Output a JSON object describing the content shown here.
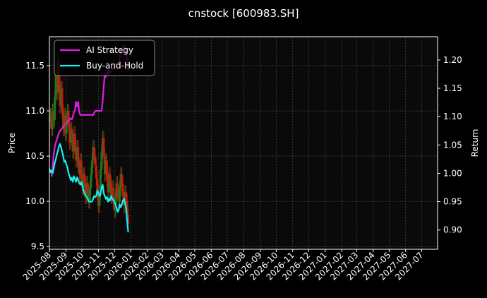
{
  "chart_data": {
    "type": "line",
    "title": "cnstock [600983.SH]",
    "ylabel_left": "Price",
    "ylabel_right": "Return",
    "xlabel": "",
    "grid": true,
    "legend_position": "top-left",
    "x_start": "2025-08-01",
    "x_end": "2027-07-31",
    "ylim_left": [
      9.47,
      11.82
    ],
    "ylim_right": [
      0.866,
      1.241
    ],
    "x_ticks": [
      "2025-08",
      "2025-09",
      "2025-10",
      "2025-11",
      "2025-12",
      "2026-01",
      "2026-02",
      "2026-03",
      "2026-04",
      "2026-05",
      "2026-06",
      "2026-07",
      "2026-08",
      "2026-09",
      "2026-10",
      "2026-11",
      "2026-12",
      "2027-01",
      "2027-02",
      "2027-03",
      "2027-04",
      "2027-05",
      "2027-06",
      "2027-07"
    ],
    "y_ticks_left": [
      9.5,
      10.0,
      10.5,
      11.0,
      11.5
    ],
    "y_ticks_right": [
      0.9,
      0.95,
      1.0,
      1.05,
      1.1,
      1.15,
      1.2
    ],
    "y_tick_labels_left": [
      "9.5",
      "10.0",
      "10.5",
      "11.0",
      "11.5"
    ],
    "y_tick_labels_right": [
      "0.90",
      "0.95",
      "1.00",
      "1.05",
      "1.10",
      "1.15",
      "1.20"
    ],
    "colors": {
      "background": "#000000",
      "axes_face": "#0a0a0a",
      "text": "#ffffff",
      "grid": "#555555",
      "up_candle": "#1a7a1a",
      "down_candle": "#c41a10"
    },
    "price_series": {
      "name": "600983.SH",
      "type": "candlestick",
      "points": [
        [
          "2025-08-01",
          10.88
        ],
        [
          "2025-08-03",
          10.95
        ],
        [
          "2025-08-05",
          10.8
        ],
        [
          "2025-08-07",
          11.0
        ],
        [
          "2025-08-09",
          10.9
        ],
        [
          "2025-08-11",
          11.15
        ],
        [
          "2025-08-13",
          11.4
        ],
        [
          "2025-08-15",
          11.2
        ],
        [
          "2025-08-17",
          11.55
        ],
        [
          "2025-08-19",
          11.3
        ],
        [
          "2025-08-21",
          11.05
        ],
        [
          "2025-08-23",
          11.25
        ],
        [
          "2025-08-25",
          11.0
        ],
        [
          "2025-08-27",
          10.8
        ],
        [
          "2025-08-29",
          10.95
        ],
        [
          "2025-08-31",
          10.75
        ],
        [
          "2025-09-02",
          10.9
        ],
        [
          "2025-09-04",
          11.0
        ],
        [
          "2025-09-06",
          10.85
        ],
        [
          "2025-09-08",
          10.65
        ],
        [
          "2025-09-10",
          10.8
        ],
        [
          "2025-09-12",
          10.7
        ],
        [
          "2025-09-14",
          10.55
        ],
        [
          "2025-09-16",
          10.75
        ],
        [
          "2025-09-18",
          10.6
        ],
        [
          "2025-09-20",
          10.45
        ],
        [
          "2025-09-22",
          10.6
        ],
        [
          "2025-09-24",
          10.4
        ],
        [
          "2025-09-26",
          10.3
        ],
        [
          "2025-09-28",
          10.45
        ],
        [
          "2025-09-30",
          10.25
        ],
        [
          "2025-10-02",
          10.15
        ],
        [
          "2025-10-04",
          10.3
        ],
        [
          "2025-10-06",
          10.2
        ],
        [
          "2025-10-08",
          10.05
        ],
        [
          "2025-10-10",
          10.2
        ],
        [
          "2025-10-12",
          10.1
        ],
        [
          "2025-10-14",
          10.0
        ],
        [
          "2025-10-16",
          10.15
        ],
        [
          "2025-10-18",
          10.3
        ],
        [
          "2025-10-20",
          10.45
        ],
        [
          "2025-10-22",
          10.6
        ],
        [
          "2025-10-24",
          10.5
        ],
        [
          "2025-10-26",
          10.4
        ],
        [
          "2025-10-28",
          10.25
        ],
        [
          "2025-10-30",
          10.1
        ],
        [
          "2025-11-01",
          9.95
        ],
        [
          "2025-11-03",
          10.1
        ],
        [
          "2025-11-05",
          10.35
        ],
        [
          "2025-11-07",
          10.55
        ],
        [
          "2025-11-09",
          10.7
        ],
        [
          "2025-11-11",
          10.5
        ],
        [
          "2025-11-13",
          10.3
        ],
        [
          "2025-11-15",
          10.45
        ],
        [
          "2025-11-17",
          10.25
        ],
        [
          "2025-11-19",
          10.1
        ],
        [
          "2025-11-21",
          10.3
        ],
        [
          "2025-11-23",
          10.2
        ],
        [
          "2025-11-25",
          10.05
        ],
        [
          "2025-11-27",
          10.15
        ],
        [
          "2025-11-29",
          10.0
        ],
        [
          "2025-12-01",
          9.9
        ],
        [
          "2025-12-03",
          10.05
        ],
        [
          "2025-12-05",
          10.2
        ],
        [
          "2025-12-07",
          10.1
        ],
        [
          "2025-12-09",
          10.0
        ],
        [
          "2025-12-11",
          10.15
        ],
        [
          "2025-12-13",
          10.3
        ],
        [
          "2025-12-15",
          10.2
        ],
        [
          "2025-12-17",
          10.05
        ],
        [
          "2025-12-19",
          9.95
        ],
        [
          "2025-12-21",
          10.1
        ],
        [
          "2025-12-23",
          10.0
        ],
        [
          "2025-12-25",
          9.85
        ],
        [
          "2025-12-27",
          9.75
        ]
      ]
    },
    "series": [
      {
        "name": "AI Strategy",
        "color": "#e61ae6",
        "points": [
          [
            "2025-08-05",
            0.994
          ],
          [
            "2025-08-07",
            1.01
          ],
          [
            "2025-08-09",
            1.033
          ],
          [
            "2025-08-11",
            1.046
          ],
          [
            "2025-08-13",
            1.054
          ],
          [
            "2025-08-15",
            1.06
          ],
          [
            "2025-08-17",
            1.066
          ],
          [
            "2025-08-19",
            1.072
          ],
          [
            "2025-08-21",
            1.075
          ],
          [
            "2025-08-23",
            1.077
          ],
          [
            "2025-08-25",
            1.08
          ],
          [
            "2025-08-27",
            1.082
          ],
          [
            "2025-08-29",
            1.085
          ],
          [
            "2025-08-31",
            1.087
          ],
          [
            "2025-09-02",
            1.089
          ],
          [
            "2025-09-04",
            1.091
          ],
          [
            "2025-09-06",
            1.093
          ],
          [
            "2025-09-08",
            1.095
          ],
          [
            "2025-09-10",
            1.097
          ],
          [
            "2025-09-12",
            1.095
          ],
          [
            "2025-09-14",
            1.1
          ],
          [
            "2025-09-16",
            1.108
          ],
          [
            "2025-09-18",
            1.111
          ],
          [
            "2025-09-20",
            1.126
          ],
          [
            "2025-09-22",
            1.118
          ],
          [
            "2025-09-24",
            1.126
          ],
          [
            "2025-09-26",
            1.108
          ],
          [
            "2025-09-28",
            1.103
          ],
          [
            "2025-09-30",
            1.103
          ],
          [
            "2025-10-02",
            1.103
          ],
          [
            "2025-10-06",
            1.103
          ],
          [
            "2025-10-10",
            1.103
          ],
          [
            "2025-10-14",
            1.103
          ],
          [
            "2025-10-18",
            1.103
          ],
          [
            "2025-10-22",
            1.103
          ],
          [
            "2025-10-26",
            1.11
          ],
          [
            "2025-10-30",
            1.11
          ],
          [
            "2025-11-02",
            1.11
          ],
          [
            "2025-11-05",
            1.11
          ],
          [
            "2025-11-07",
            1.11
          ],
          [
            "2025-11-09",
            1.128
          ],
          [
            "2025-11-11",
            1.152
          ],
          [
            "2025-11-13",
            1.175
          ],
          [
            "2025-11-15",
            1.17
          ],
          [
            "2025-11-17",
            1.178
          ],
          [
            "2025-11-19",
            1.175
          ],
          [
            "2025-11-21",
            1.182
          ],
          [
            "2025-11-23",
            1.178
          ],
          [
            "2025-11-25",
            1.18
          ],
          [
            "2025-11-27",
            1.185
          ],
          [
            "2025-11-29",
            1.183
          ],
          [
            "2025-12-01",
            1.186
          ],
          [
            "2025-12-03",
            1.192
          ],
          [
            "2025-12-05",
            1.188
          ],
          [
            "2025-12-07",
            1.191
          ],
          [
            "2025-12-09",
            1.196
          ],
          [
            "2025-12-11",
            1.205
          ],
          [
            "2025-12-13",
            1.215
          ],
          [
            "2025-12-15",
            1.21
          ],
          [
            "2025-12-17",
            1.225
          ],
          [
            "2025-12-19",
            1.22
          ],
          [
            "2025-12-21",
            1.225
          ],
          [
            "2025-12-23",
            1.215
          ],
          [
            "2025-12-25",
            1.205
          ],
          [
            "2025-12-27",
            1.18
          ]
        ]
      },
      {
        "name": "Buy-and-Hold",
        "color": "#14f0f0",
        "points": [
          [
            "2025-08-01",
            1.008
          ],
          [
            "2025-08-03",
            1.002
          ],
          [
            "2025-08-05",
            1.005
          ],
          [
            "2025-08-07",
            1.0
          ],
          [
            "2025-08-09",
            1.008
          ],
          [
            "2025-08-11",
            1.018
          ],
          [
            "2025-08-13",
            1.025
          ],
          [
            "2025-08-15",
            1.033
          ],
          [
            "2025-08-17",
            1.04
          ],
          [
            "2025-08-19",
            1.048
          ],
          [
            "2025-08-21",
            1.052
          ],
          [
            "2025-08-23",
            1.045
          ],
          [
            "2025-08-25",
            1.038
          ],
          [
            "2025-08-27",
            1.03
          ],
          [
            "2025-08-29",
            1.02
          ],
          [
            "2025-08-31",
            1.022
          ],
          [
            "2025-09-02",
            1.015
          ],
          [
            "2025-09-04",
            1.01
          ],
          [
            "2025-09-06",
            1.0
          ],
          [
            "2025-09-08",
            0.995
          ],
          [
            "2025-09-10",
            0.988
          ],
          [
            "2025-09-12",
            0.992
          ],
          [
            "2025-09-14",
            0.985
          ],
          [
            "2025-09-16",
            0.995
          ],
          [
            "2025-09-18",
            0.99
          ],
          [
            "2025-09-20",
            0.985
          ],
          [
            "2025-09-22",
            0.993
          ],
          [
            "2025-09-24",
            0.988
          ],
          [
            "2025-09-26",
            0.983
          ],
          [
            "2025-09-28",
            0.98
          ],
          [
            "2025-09-30",
            0.985
          ],
          [
            "2025-10-02",
            0.978
          ],
          [
            "2025-10-04",
            0.97
          ],
          [
            "2025-10-06",
            0.965
          ],
          [
            "2025-10-08",
            0.96
          ],
          [
            "2025-10-10",
            0.958
          ],
          [
            "2025-10-12",
            0.955
          ],
          [
            "2025-10-14",
            0.95
          ],
          [
            "2025-10-16",
            0.95
          ],
          [
            "2025-10-18",
            0.95
          ],
          [
            "2025-10-20",
            0.95
          ],
          [
            "2025-10-22",
            0.955
          ],
          [
            "2025-10-24",
            0.96
          ],
          [
            "2025-10-26",
            0.958
          ],
          [
            "2025-10-28",
            0.96
          ],
          [
            "2025-10-30",
            0.97
          ],
          [
            "2025-11-01",
            0.965
          ],
          [
            "2025-11-03",
            0.96
          ],
          [
            "2025-11-05",
            0.963
          ],
          [
            "2025-11-07",
            0.975
          ],
          [
            "2025-11-09",
            0.98
          ],
          [
            "2025-11-11",
            0.965
          ],
          [
            "2025-11-13",
            0.96
          ],
          [
            "2025-11-15",
            0.955
          ],
          [
            "2025-11-17",
            0.958
          ],
          [
            "2025-11-19",
            0.95
          ],
          [
            "2025-11-21",
            0.955
          ],
          [
            "2025-11-23",
            0.952
          ],
          [
            "2025-11-25",
            0.96
          ],
          [
            "2025-11-27",
            0.955
          ],
          [
            "2025-11-29",
            0.953
          ],
          [
            "2025-12-01",
            0.95
          ],
          [
            "2025-12-03",
            0.945
          ],
          [
            "2025-12-05",
            0.94
          ],
          [
            "2025-12-07",
            0.932
          ],
          [
            "2025-12-09",
            0.935
          ],
          [
            "2025-12-11",
            0.945
          ],
          [
            "2025-12-13",
            0.94
          ],
          [
            "2025-12-15",
            0.945
          ],
          [
            "2025-12-17",
            0.952
          ],
          [
            "2025-12-19",
            0.955
          ],
          [
            "2025-12-21",
            0.948
          ],
          [
            "2025-12-23",
            0.94
          ],
          [
            "2025-12-25",
            0.915
          ],
          [
            "2025-12-27",
            0.896
          ]
        ]
      }
    ]
  }
}
